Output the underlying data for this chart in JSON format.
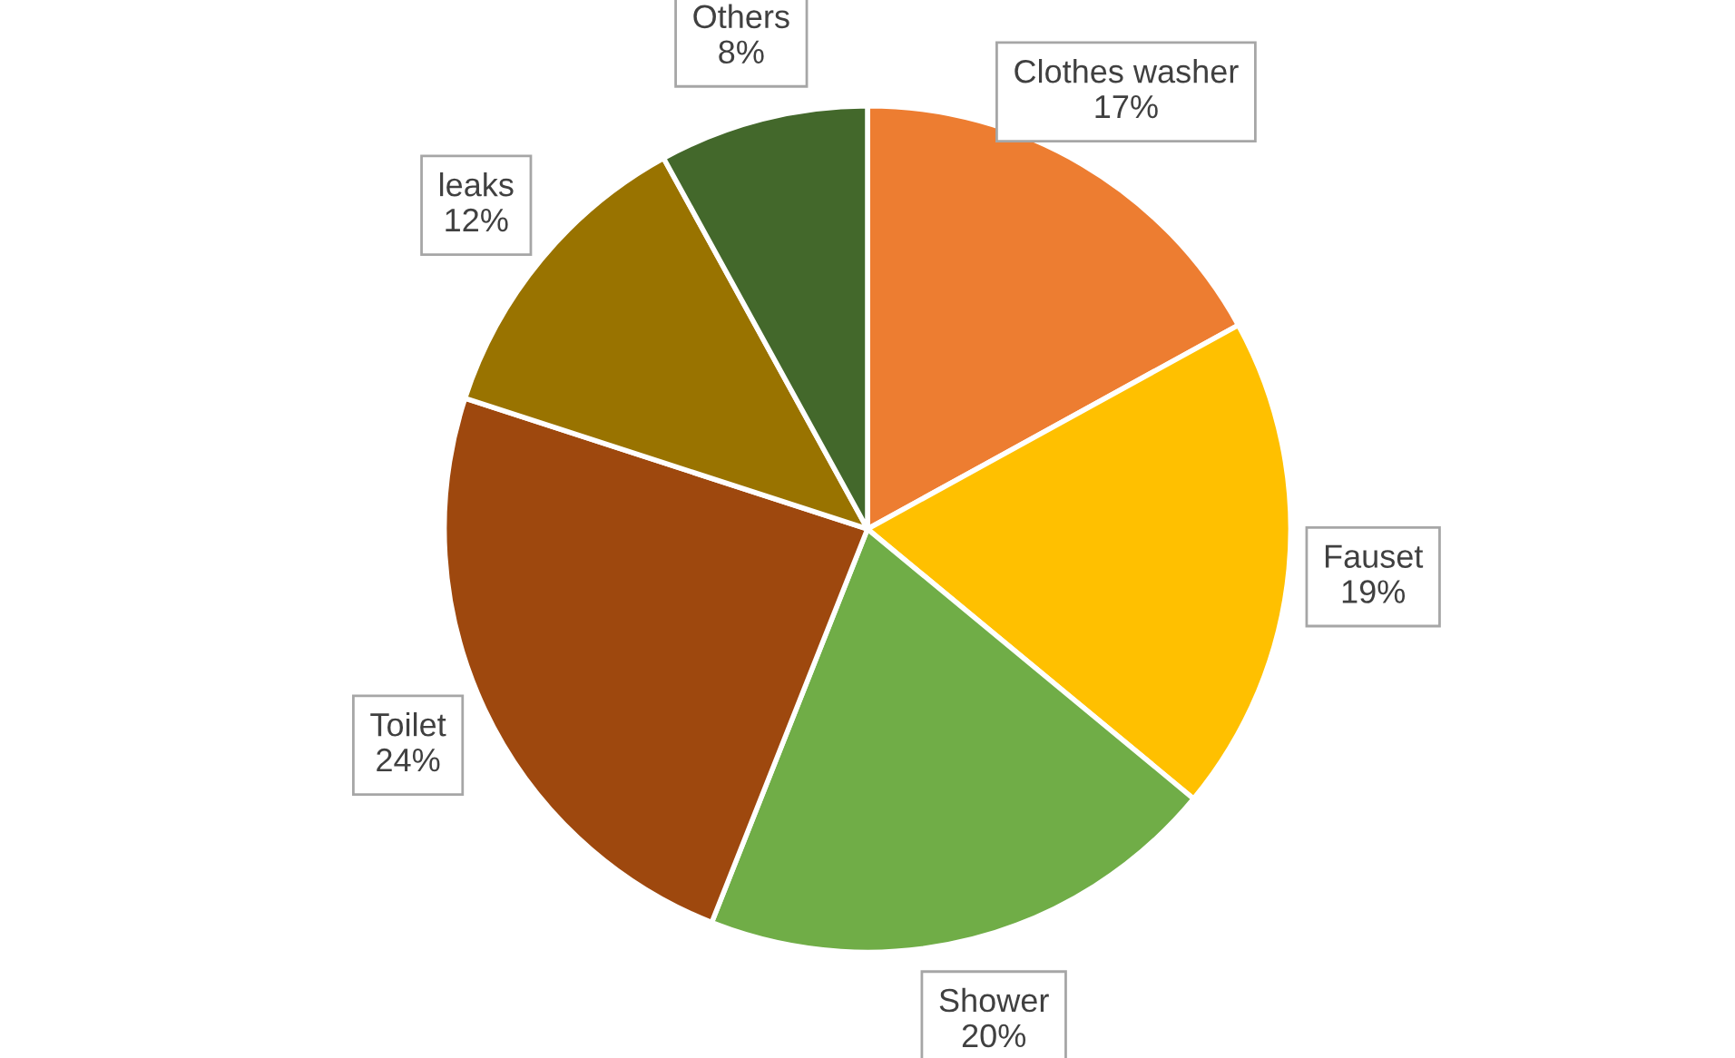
{
  "chart_data": {
    "type": "pie",
    "categories": [
      "Clothes washer",
      "Fauset",
      "Shower",
      "Toilet",
      "leaks",
      "Others"
    ],
    "values": [
      17,
      19,
      20,
      24,
      12,
      8
    ],
    "value_labels": [
      "17%",
      "19%",
      "20%",
      "24%",
      "12%",
      "8%"
    ],
    "colors": [
      "#ed7d31",
      "#ffc000",
      "#70ad47",
      "#9e480e",
      "#997300",
      "#43682b"
    ],
    "legend": false
  }
}
